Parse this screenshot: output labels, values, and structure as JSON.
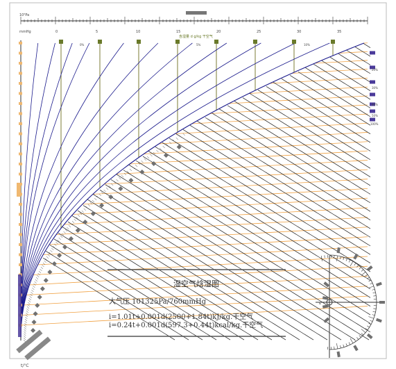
{
  "chart": {
    "title": "湿空气焓湿图",
    "pressure": "大气压 101325Pa/760mmHg",
    "formula_kj": "i=1.01t+0.001d(2500+1.84t)kJ/kg.干空气",
    "formula_kcal": "i=0.24t+0.001d(597.3+0.44t)kcal/kg.干空气",
    "top_scale_ticks": [
      "0",
      "5",
      "10",
      "15",
      "20",
      "25",
      "30",
      "35"
    ],
    "top_unit": "mmHg",
    "top_corner": "10²Pa",
    "d_axis_label": "含湿量 d g/kg 干空气",
    "rh_labels": [
      "0%",
      "5%",
      "10%",
      "20%",
      "30%",
      "40%",
      "50%",
      "100%"
    ],
    "protractor_label": "ε",
    "bottom_label": "t/°C"
  },
  "colors": {
    "background": "#ffffff",
    "enthalpy_lines": "#1a1a1a",
    "humidity_lines": "#1a1a8c",
    "temperature_lines": "#f0a040",
    "moisture_lines": "#5a5a00",
    "marker_olive": "#6a7a2a",
    "marker_purple": "#4a3a9a",
    "marker_gray": "#707070",
    "marker_orange": "#f0b870"
  }
}
